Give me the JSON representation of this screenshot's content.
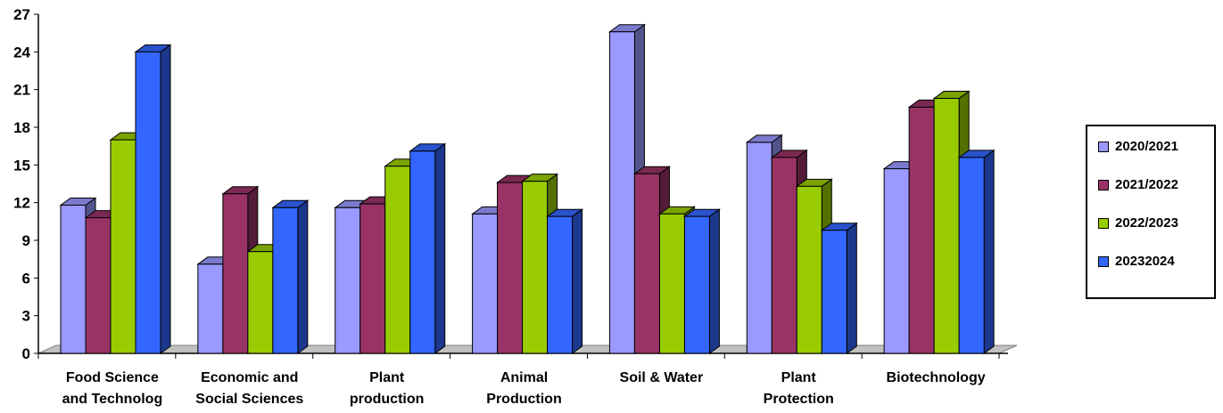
{
  "chart_data": {
    "type": "bar",
    "categories": [
      [
        "Food Science",
        "and Technolog"
      ],
      [
        "Economic and",
        "Social Sciences"
      ],
      [
        "Plant",
        "production"
      ],
      [
        "Animal",
        "Production"
      ],
      [
        "Soil & Water"
      ],
      [
        "Plant",
        "Protection"
      ],
      [
        "Biotechnology"
      ]
    ],
    "series": [
      {
        "name": "2020/2021",
        "color": "#9999ff",
        "values": [
          11.8,
          7.1,
          11.6,
          11.1,
          25.6,
          16.8,
          14.7
        ]
      },
      {
        "name": "2021/2022",
        "color": "#993366",
        "values": [
          10.8,
          12.7,
          11.9,
          13.6,
          14.3,
          15.6,
          19.6
        ]
      },
      {
        "name": "2022/2023",
        "color": "#99cc00",
        "values": [
          17.0,
          8.1,
          14.9,
          13.7,
          11.1,
          13.3,
          20.3
        ]
      },
      {
        "name": "20232024",
        "color": "#3366ff",
        "values": [
          24.0,
          11.6,
          16.1,
          10.9,
          10.9,
          9.8,
          15.6
        ]
      }
    ],
    "y_ticks": [
      0,
      3,
      6,
      9,
      12,
      15,
      18,
      21,
      24,
      27
    ],
    "ylim": [
      0,
      27
    ],
    "grid": false,
    "legend": "right",
    "title": "",
    "xlabel": "",
    "ylabel": ""
  }
}
